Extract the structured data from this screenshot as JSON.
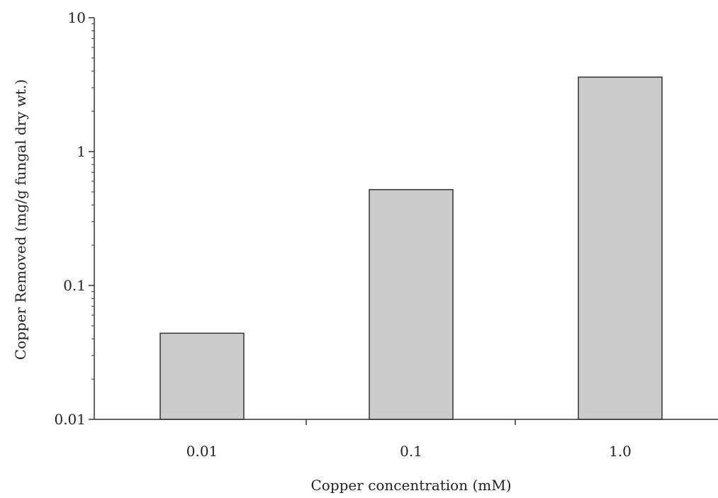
{
  "chart_data": {
    "type": "bar",
    "categories": [
      "0.01",
      "0.1",
      "1.0"
    ],
    "values": [
      0.044,
      0.52,
      3.6
    ],
    "title": "",
    "xlabel": "Copper concentration (mM)",
    "ylabel": "Copper Removed (mg/g fungal dry wt.)",
    "yscale": "log",
    "ylim": [
      0.01,
      10
    ],
    "yticks": [
      {
        "value": 0.01,
        "label": "0.01"
      },
      {
        "value": 0.1,
        "label": "0.1"
      },
      {
        "value": 1,
        "label": "1"
      },
      {
        "value": 10,
        "label": "10"
      }
    ],
    "grid": false,
    "colors": {
      "bar_fill": "#cccccc",
      "bar_stroke": "#333333",
      "axis": "#333333"
    }
  }
}
